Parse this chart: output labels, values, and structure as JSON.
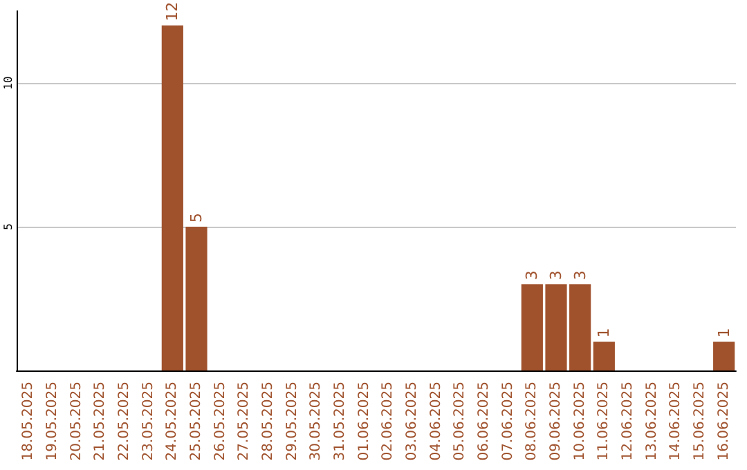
{
  "chart_data": {
    "type": "bar",
    "categories": [
      "18.05.2025",
      "19.05.2025",
      "20.05.2025",
      "21.05.2025",
      "22.05.2025",
      "23.05.2025",
      "24.05.2025",
      "25.05.2025",
      "26.05.2025",
      "27.05.2025",
      "28.05.2025",
      "29.05.2025",
      "30.05.2025",
      "31.05.2025",
      "01.06.2025",
      "02.06.2025",
      "03.06.2025",
      "04.06.2025",
      "05.06.2025",
      "06.06.2025",
      "07.06.2025",
      "08.06.2025",
      "09.06.2025",
      "10.06.2025",
      "11.06.2025",
      "12.06.2025",
      "13.06.2025",
      "14.06.2025",
      "15.06.2025",
      "16.06.2025"
    ],
    "values": [
      0,
      0,
      0,
      0,
      0,
      0,
      12,
      5,
      0,
      0,
      0,
      0,
      0,
      0,
      0,
      0,
      0,
      0,
      0,
      0,
      0,
      3,
      3,
      3,
      1,
      0,
      0,
      0,
      0,
      1
    ],
    "value_labels": [
      null,
      null,
      null,
      null,
      null,
      null,
      "12",
      "5",
      null,
      null,
      null,
      null,
      null,
      null,
      null,
      null,
      null,
      null,
      null,
      null,
      null,
      "3",
      "3",
      "3",
      "1",
      null,
      null,
      null,
      null,
      "1"
    ],
    "color": "#a0522d",
    "ylim": [
      0,
      12.5
    ],
    "yticks": [
      5,
      10
    ],
    "grid": "y"
  }
}
